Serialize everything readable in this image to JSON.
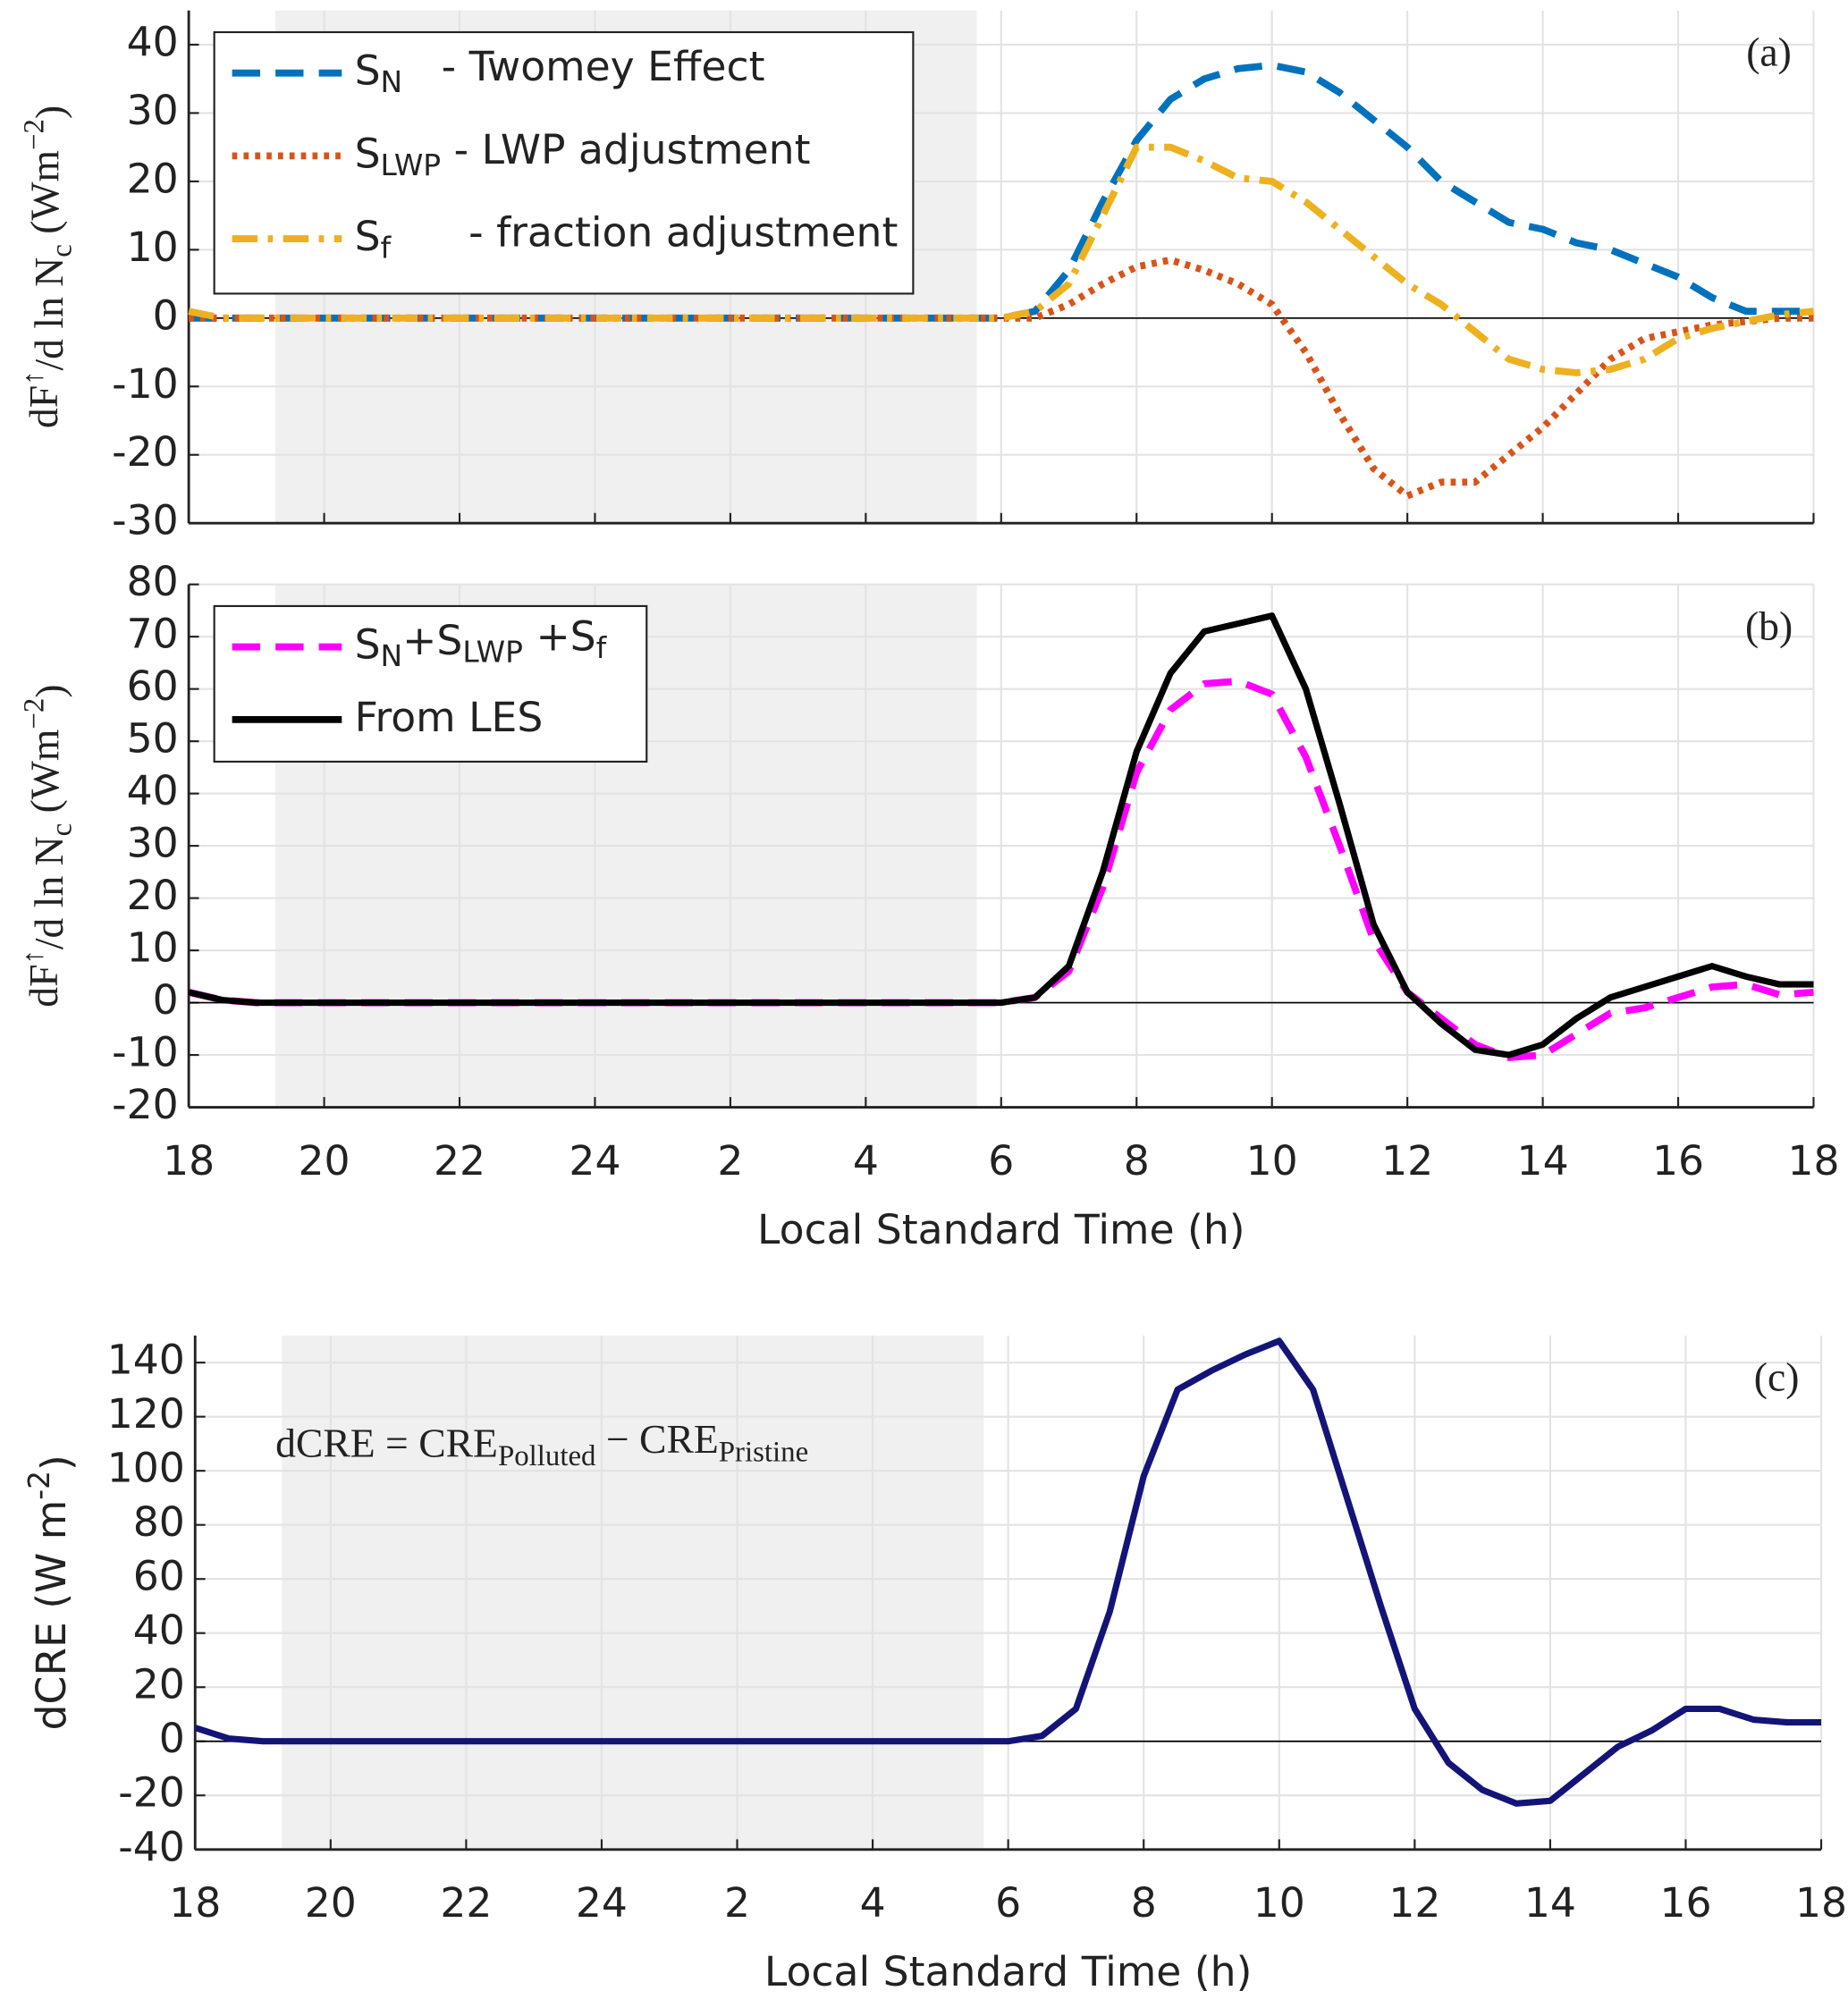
{
  "chart_data": [
    {
      "type": "line",
      "label": "(a)",
      "ylabel_parts": [
        {
          "text": "dF"
        },
        {
          "text": "↑",
          "sup": true
        },
        {
          "text": "/d ln N"
        },
        {
          "text": "c",
          "sub": true
        },
        {
          "text": " (Wm"
        },
        {
          "text": "−2",
          "sup": true
        },
        {
          "text": ")"
        }
      ],
      "x": [
        0,
        0.5,
        1,
        1.5,
        2,
        2.5,
        3,
        3.5,
        4,
        4.5,
        5,
        5.5,
        6,
        6.5,
        7,
        7.5,
        8,
        8.5,
        9,
        9.5,
        10,
        10.5,
        11,
        11.5,
        12,
        12.5,
        13,
        13.5,
        14,
        14.5,
        15,
        15.5,
        16,
        16.5,
        17,
        17.5,
        18,
        18.5,
        19,
        19.5,
        20,
        20.5,
        21,
        21.5,
        22,
        22.5,
        23,
        23.5,
        24
      ],
      "xlim": [
        0,
        24
      ],
      "xticks": [
        0,
        2,
        4,
        6,
        8,
        10,
        12,
        14,
        16,
        18,
        20,
        22,
        24
      ],
      "ylim": [
        -30,
        45
      ],
      "yticks": [
        -30,
        -20,
        -10,
        0,
        10,
        20,
        30,
        40
      ],
      "grid": true,
      "shaded_span": [
        1.28,
        11.64
      ],
      "legend": "upper left",
      "series": [
        {
          "name_parts": [
            {
              "text": "S"
            },
            {
              "text": "N",
              "sub": true
            },
            {
              "text": "   - Twomey Effect"
            }
          ],
          "color": "#0072bd",
          "style": "dashed",
          "values": [
            0,
            0,
            0,
            0,
            0,
            0,
            0,
            0,
            0,
            0,
            0,
            0,
            0,
            0,
            0,
            0,
            0,
            0,
            0,
            0,
            0,
            0,
            0,
            0,
            0,
            1,
            7,
            17,
            26,
            32,
            35,
            36.5,
            37,
            36,
            33,
            29,
            25,
            20,
            17,
            14,
            13,
            11,
            10,
            8,
            6,
            3,
            1,
            1,
            1
          ]
        },
        {
          "name_parts": [
            {
              "text": "S"
            },
            {
              "text": "LWP",
              "sub": true
            },
            {
              "text": " - LWP adjustment"
            }
          ],
          "color": "#d95319",
          "style": "dotted",
          "values": [
            0,
            0,
            0,
            0,
            0,
            0,
            0,
            0,
            0,
            0,
            0,
            0,
            0,
            0,
            0,
            0,
            0,
            0,
            0,
            0,
            0,
            0,
            0,
            0,
            0,
            0,
            2,
            5,
            7.5,
            8.5,
            7,
            5,
            2,
            -5,
            -14,
            -22,
            -26,
            -24,
            -24,
            -20,
            -16,
            -11,
            -6,
            -3,
            -2,
            -1,
            -0.5,
            0,
            0
          ]
        },
        {
          "name_parts": [
            {
              "text": "S"
            },
            {
              "text": "f",
              "sub": true
            },
            {
              "text": "      - fraction adjustment"
            }
          ],
          "color": "#edb120",
          "style": "dashdot",
          "values": [
            1,
            0,
            0,
            0,
            0,
            0,
            0,
            0,
            0,
            0,
            0,
            0,
            0,
            0,
            0,
            0,
            0,
            0,
            0,
            0,
            0,
            0,
            0,
            0,
            0,
            1,
            5,
            15,
            25,
            25,
            23,
            20.5,
            20,
            17,
            13,
            9,
            5,
            2,
            -2,
            -6,
            -7.5,
            -8,
            -7.5,
            -6,
            -3,
            -1.5,
            -0.5,
            0.5,
            1
          ]
        }
      ]
    },
    {
      "type": "line",
      "label": "(b)",
      "ylabel_parts": [
        {
          "text": "dF"
        },
        {
          "text": "↑",
          "sup": true
        },
        {
          "text": "/d ln N"
        },
        {
          "text": "c",
          "sub": true
        },
        {
          "text": " (Wm"
        },
        {
          "text": "−2",
          "sup": true
        },
        {
          "text": ")"
        }
      ],
      "xlabel": "Local Standard Time (h)",
      "x": [
        0,
        0.5,
        1,
        1.5,
        2,
        2.5,
        3,
        3.5,
        4,
        4.5,
        5,
        5.5,
        6,
        6.5,
        7,
        7.5,
        8,
        8.5,
        9,
        9.5,
        10,
        10.5,
        11,
        11.5,
        12,
        12.5,
        13,
        13.5,
        14,
        14.5,
        15,
        15.5,
        16,
        16.5,
        17,
        17.5,
        18,
        18.5,
        19,
        19.5,
        20,
        20.5,
        21,
        21.5,
        22,
        22.5,
        23,
        23.5,
        24
      ],
      "xlim": [
        0,
        24
      ],
      "xticks": [
        {
          "value": 0,
          "label": "18"
        },
        {
          "value": 2,
          "label": "20"
        },
        {
          "value": 4,
          "label": "22"
        },
        {
          "value": 6,
          "label": "24"
        },
        {
          "value": 8,
          "label": "2"
        },
        {
          "value": 10,
          "label": "4"
        },
        {
          "value": 12,
          "label": "6"
        },
        {
          "value": 14,
          "label": "8"
        },
        {
          "value": 16,
          "label": "10"
        },
        {
          "value": 18,
          "label": "12"
        },
        {
          "value": 20,
          "label": "14"
        },
        {
          "value": 22,
          "label": "16"
        },
        {
          "value": 24,
          "label": "18"
        }
      ],
      "ylim": [
        -20,
        80
      ],
      "yticks": [
        -20,
        -10,
        0,
        10,
        20,
        30,
        40,
        50,
        60,
        70,
        80
      ],
      "grid": true,
      "shaded_span": [
        1.28,
        11.64
      ],
      "legend": "upper left",
      "series": [
        {
          "name_parts": [
            {
              "text": "S"
            },
            {
              "text": "N",
              "sub": true
            },
            {
              "text": "+S"
            },
            {
              "text": "LWP",
              "sub": true
            },
            {
              "text": " +S"
            },
            {
              "text": "f",
              "sub": true
            }
          ],
          "color": "#ff00ff",
          "style": "dashed",
          "values": [
            2,
            0.5,
            0,
            0,
            0,
            0,
            0,
            0,
            0,
            0,
            0,
            0,
            0,
            0,
            0,
            0,
            0,
            0,
            0,
            0,
            0,
            0,
            0,
            0,
            0,
            1,
            6,
            22,
            44,
            56,
            61,
            61.5,
            59,
            47,
            30,
            12,
            2,
            -3,
            -8,
            -10.5,
            -10,
            -6,
            -2,
            -1,
            1,
            3,
            3.5,
            1.5,
            2
          ]
        },
        {
          "name_parts": [
            {
              "text": "From LES"
            }
          ],
          "color": "#000000",
          "style": "solid",
          "values": [
            2,
            0.5,
            0,
            0,
            0,
            0,
            0,
            0,
            0,
            0,
            0,
            0,
            0,
            0,
            0,
            0,
            0,
            0,
            0,
            0,
            0,
            0,
            0,
            0,
            0,
            1,
            7,
            25,
            48,
            63,
            71,
            72.5,
            74,
            60,
            38,
            15,
            2,
            -4,
            -9,
            -10,
            -8,
            -3,
            1,
            3,
            5,
            7,
            5,
            3.5,
            3.5
          ]
        }
      ]
    },
    {
      "type": "line",
      "label": "(c)",
      "ylabel_parts": [
        {
          "text": "dCRE (W m"
        },
        {
          "text": "-2",
          "sup": true
        },
        {
          "text": ")"
        }
      ],
      "xlabel": "Local Standard Time (h)",
      "annotation_parts": [
        {
          "text": "dCRE = CRE"
        },
        {
          "text": "Polluted",
          "sub": true
        },
        {
          "text": " − CRE"
        },
        {
          "text": "Pristine",
          "sub": true
        }
      ],
      "x": [
        0,
        0.5,
        1,
        1.5,
        2,
        2.5,
        3,
        3.5,
        4,
        4.5,
        5,
        5.5,
        6,
        6.5,
        7,
        7.5,
        8,
        8.5,
        9,
        9.5,
        10,
        10.5,
        11,
        11.5,
        12,
        12.5,
        13,
        13.5,
        14,
        14.5,
        15,
        15.5,
        16,
        16.5,
        17,
        17.5,
        18,
        18.5,
        19,
        19.5,
        20,
        20.5,
        21,
        21.5,
        22,
        22.5,
        23,
        23.5,
        24
      ],
      "xlim": [
        0,
        24
      ],
      "xticks": [
        {
          "value": 0,
          "label": "18"
        },
        {
          "value": 2,
          "label": "20"
        },
        {
          "value": 4,
          "label": "22"
        },
        {
          "value": 6,
          "label": "24"
        },
        {
          "value": 8,
          "label": "2"
        },
        {
          "value": 10,
          "label": "4"
        },
        {
          "value": 12,
          "label": "6"
        },
        {
          "value": 14,
          "label": "8"
        },
        {
          "value": 16,
          "label": "10"
        },
        {
          "value": 18,
          "label": "12"
        },
        {
          "value": 20,
          "label": "14"
        },
        {
          "value": 22,
          "label": "16"
        },
        {
          "value": 24,
          "label": "18"
        }
      ],
      "ylim": [
        -40,
        150
      ],
      "yticks": [
        -40,
        -20,
        0,
        20,
        40,
        60,
        80,
        100,
        120,
        140
      ],
      "grid": true,
      "shaded_span": [
        1.28,
        11.64
      ],
      "series": [
        {
          "color": "#141478",
          "style": "solid",
          "values": [
            5,
            1,
            0,
            0,
            0,
            0,
            0,
            0,
            0,
            0,
            0,
            0,
            0,
            0,
            0,
            0,
            0,
            0,
            0,
            0,
            0,
            0,
            0,
            0,
            0,
            2,
            12,
            48,
            98,
            130,
            137,
            143,
            148,
            130,
            90,
            50,
            12,
            -8,
            -18,
            -23,
            -22,
            -12,
            -2,
            4,
            12,
            12,
            8,
            7,
            7
          ]
        }
      ]
    }
  ]
}
